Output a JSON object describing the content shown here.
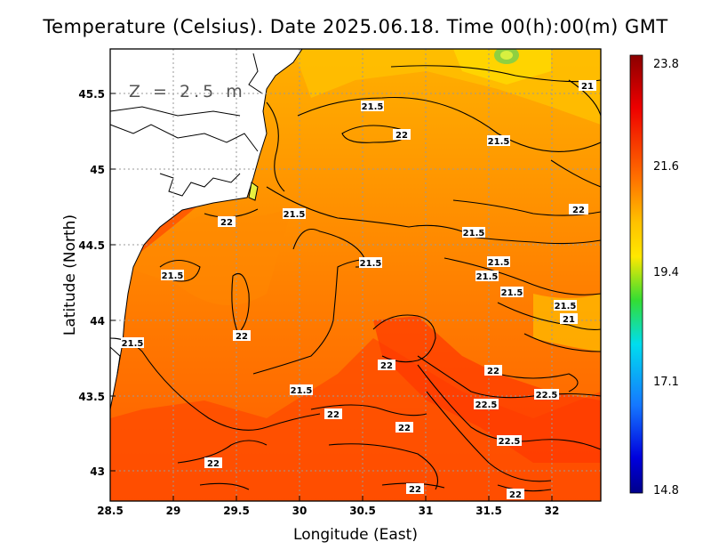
{
  "title": "Temperature (Celsius). Date 2025.06.18. Time 00(h):00(m) GMT",
  "depth_label": "Z = 2.5 m",
  "xlabel": "Longitude (East)",
  "ylabel": "Latitude (North)",
  "x_ticks": [
    "28.5",
    "29",
    "29.5",
    "30",
    "30.5",
    "31",
    "31.5",
    "32"
  ],
  "y_ticks": [
    "43",
    "43.5",
    "44",
    "44.5",
    "45",
    "45.5"
  ],
  "colorbar": {
    "ticks": [
      "23.8",
      "21.6",
      "19.4",
      "17.1",
      "14.8"
    ],
    "colors": [
      "#8b0000",
      "#ff0000",
      "#ff8c00",
      "#ffd700",
      "#00cc44",
      "#00ccff",
      "#0044ff",
      "#00008b"
    ]
  },
  "contour_labels": [
    "21.5",
    "22",
    "21.5",
    "21",
    "22",
    "21.5",
    "21.5",
    "22",
    "21.5",
    "21.5",
    "21.5",
    "21.5",
    "21.5",
    "21.5",
    "21.5",
    "21",
    "22",
    "21.5",
    "22",
    "22",
    "22.5",
    "22.5",
    "22",
    "22.5",
    "22",
    "22",
    "22"
  ],
  "chart_data": {
    "type": "heatmap",
    "title": "Temperature (Celsius). Date 2025.06.18. Time 00(h):00(m) GMT",
    "xlabel": "Longitude (East)",
    "ylabel": "Latitude (North)",
    "xlim": [
      28.5,
      32.4
    ],
    "ylim": [
      42.8,
      45.8
    ],
    "colorbar_range": [
      14.8,
      23.8
    ],
    "contour_levels": [
      21,
      21.5,
      22,
      22.5
    ],
    "grid": true
  }
}
